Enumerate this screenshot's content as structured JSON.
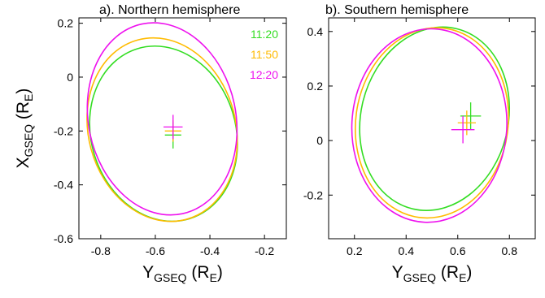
{
  "chart_data": [
    {
      "type": "line",
      "title": "a). Northern hemisphere",
      "xlabel": {
        "main": "Y",
        "sub": "GSEQ",
        "unit_open": " (R",
        "unit_sub": "E",
        "unit_close": ")"
      },
      "ylabel": {
        "main": "X",
        "sub": "GSEQ",
        "unit_open": " (R",
        "unit_sub": "E",
        "unit_close": ")"
      },
      "xlim": [
        -0.88,
        -0.12
      ],
      "ylim": [
        -0.6,
        0.22
      ],
      "xticks": [
        -0.8,
        -0.6,
        -0.4,
        -0.2
      ],
      "yticks": [
        -0.6,
        -0.4,
        -0.2,
        0,
        0.2
      ],
      "xtick_labels": [
        "-0.8",
        "-0.6",
        "-0.4",
        "-0.2"
      ],
      "ytick_labels": [
        "-0.6",
        "-0.4",
        "-0.2",
        "0",
        "0.2"
      ],
      "legend": {
        "position": "top-right",
        "entries": [
          "11:20",
          "11:50",
          "12:20"
        ]
      },
      "series": [
        {
          "name": "11:20",
          "color": "#33dd22",
          "ellipse": {
            "cx": -0.57,
            "cy": -0.21,
            "rx": 0.265,
            "ry": 0.33,
            "angle_deg": -17
          },
          "cross": {
            "x": -0.535,
            "y": -0.215,
            "half_width": 0.03,
            "half_height": 0.05
          }
        },
        {
          "name": "11:50",
          "color": "#ffbb00",
          "ellipse": {
            "cx": -0.575,
            "cy": -0.195,
            "rx": 0.27,
            "ry": 0.345,
            "angle_deg": -15
          },
          "cross": {
            "x": -0.535,
            "y": -0.2,
            "half_width": 0.03,
            "half_height": 0.04
          }
        },
        {
          "name": "12:20",
          "color": "#ee11ee",
          "ellipse": {
            "cx": -0.575,
            "cy": -0.155,
            "rx": 0.27,
            "ry": 0.36,
            "angle_deg": -12
          },
          "cross": {
            "x": -0.535,
            "y": -0.185,
            "half_width": 0.035,
            "half_height": 0.045
          }
        }
      ]
    },
    {
      "type": "line",
      "title": "b). Southern hemisphere",
      "xlabel": {
        "main": "Y",
        "sub": "GSEQ",
        "unit_open": " (R",
        "unit_sub": "E",
        "unit_close": ")"
      },
      "ylabel": null,
      "xlim": [
        0.1,
        0.9
      ],
      "ylim": [
        -0.36,
        0.45
      ],
      "xticks": [
        0.2,
        0.4,
        0.6,
        0.8
      ],
      "yticks": [
        -0.2,
        0,
        0.2,
        0.4
      ],
      "xtick_labels": [
        "0.2",
        "0.4",
        "0.6",
        "0.8"
      ],
      "ytick_labels": [
        "-0.2",
        "0",
        "0.2",
        "0.4"
      ],
      "legend": null,
      "series": [
        {
          "name": "11:20",
          "color": "#33dd22",
          "ellipse": {
            "cx": 0.51,
            "cy": 0.08,
            "rx": 0.285,
            "ry": 0.34,
            "angle_deg": 14
          },
          "cross": {
            "x": 0.65,
            "y": 0.09,
            "half_width": 0.04,
            "half_height": 0.05
          }
        },
        {
          "name": "11:50",
          "color": "#ffbb00",
          "ellipse": {
            "cx": 0.5,
            "cy": 0.065,
            "rx": 0.295,
            "ry": 0.35,
            "angle_deg": 8
          },
          "cross": {
            "x": 0.635,
            "y": 0.065,
            "half_width": 0.035,
            "half_height": 0.045
          }
        },
        {
          "name": "12:20",
          "color": "#ee11ee",
          "ellipse": {
            "cx": 0.49,
            "cy": 0.055,
            "rx": 0.3,
            "ry": 0.355,
            "angle_deg": 3
          },
          "cross": {
            "x": 0.62,
            "y": 0.04,
            "half_width": 0.045,
            "half_height": 0.05
          }
        }
      ]
    }
  ]
}
